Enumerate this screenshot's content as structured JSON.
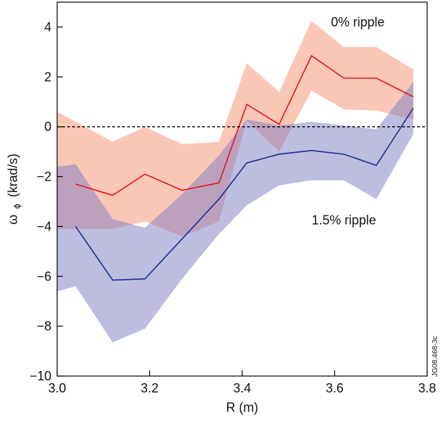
{
  "chart_data": {
    "type": "area",
    "xlabel": "R (m)",
    "ylabel_main": "ω",
    "ylabel_sub": "ϕ",
    "ylabel_unit": "(krad/s)",
    "xlim": [
      3.0,
      3.8
    ],
    "ylim": [
      -10,
      5
    ],
    "xticks": [
      3.0,
      3.2,
      3.4,
      3.6,
      3.8
    ],
    "xtick_labels": [
      "3.0",
      "3.2",
      "3.4",
      "3.6",
      "3.8"
    ],
    "yticks": [
      -10,
      -8,
      -6,
      -4,
      -2,
      0,
      2,
      4
    ],
    "ytick_labels": [
      "−10",
      "−8",
      "−6",
      "−4",
      "−2",
      "0",
      "2",
      "4"
    ],
    "zero_line": {
      "y": 0,
      "style": "dashed",
      "color": "#000000"
    },
    "grid": false,
    "series": [
      {
        "color": "#e8141c",
        "band_color": "#f7a58a",
        "band_opacity": 0.62,
        "line": {
          "x": [
            3.04,
            3.12,
            3.19,
            3.27,
            3.35,
            3.41,
            3.48,
            3.55,
            3.62,
            3.69,
            3.77
          ],
          "y": [
            -2.3,
            -2.75,
            -1.9,
            -2.55,
            -2.25,
            0.9,
            0.1,
            2.85,
            1.95,
            1.95,
            1.2
          ]
        },
        "band": {
          "x": [
            3.0,
            3.12,
            3.19,
            3.27,
            3.35,
            3.41,
            3.48,
            3.55,
            3.62,
            3.69,
            3.77
          ],
          "upper": [
            0.6,
            -0.6,
            0.0,
            -0.7,
            -0.6,
            2.55,
            1.4,
            4.25,
            3.2,
            3.2,
            2.3
          ],
          "lower": [
            -4.1,
            -4.1,
            -3.8,
            -4.4,
            -3.8,
            0.25,
            -1.0,
            1.45,
            0.7,
            0.65,
            0.3
          ]
        }
      },
      {
        "color": "#1a2e8c",
        "band_color": "#7b7cc2",
        "band_opacity": 0.5,
        "line": {
          "x": [
            3.04,
            3.12,
            3.19,
            3.27,
            3.35,
            3.41,
            3.48,
            3.55,
            3.62,
            3.69,
            3.77
          ],
          "y": [
            -4.0,
            -6.15,
            -6.1,
            -4.5,
            -2.9,
            -1.45,
            -1.1,
            -0.95,
            -1.1,
            -1.55,
            0.75
          ]
        },
        "band": {
          "x": [
            3.0,
            3.04,
            3.12,
            3.19,
            3.27,
            3.35,
            3.41,
            3.48,
            3.55,
            3.62,
            3.69,
            3.77
          ],
          "upper": [
            -1.6,
            -1.5,
            -3.7,
            -4.05,
            -2.7,
            -1.15,
            0.3,
            0.05,
            0.2,
            0.05,
            -0.1,
            1.8
          ],
          "lower": [
            -6.6,
            -6.4,
            -8.65,
            -8.1,
            -6.1,
            -4.3,
            -3.15,
            -2.35,
            -2.15,
            -2.15,
            -2.9,
            -0.3
          ]
        }
      }
    ],
    "annotations": [
      {
        "text": "0% ripple",
        "x": 3.65,
        "y": 4.2
      },
      {
        "text": "1.5% ripple",
        "x": 3.62,
        "y": -3.75
      }
    ],
    "figure_code": "JG08.468-3c"
  }
}
